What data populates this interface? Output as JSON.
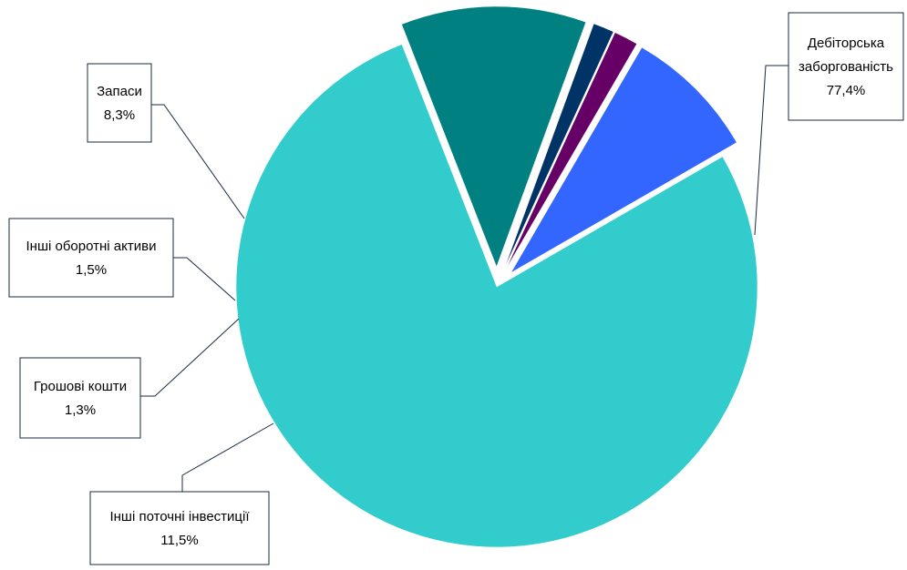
{
  "chart_data": {
    "type": "pie",
    "title": "",
    "slices": [
      {
        "name": "Дебіторська заборгованість",
        "label_lines": [
          "Дебіторська",
          "заборгованість"
        ],
        "value": 77.4,
        "value_label": "77,4%",
        "color": "#33CCCC",
        "exploded": false
      },
      {
        "name": "Інші поточні інвестиції",
        "label_lines": [
          "Інші поточні інвестиції"
        ],
        "value": 11.5,
        "value_label": "11,5%",
        "color": "#008080",
        "exploded": true
      },
      {
        "name": "Грошові кошти",
        "label_lines": [
          "Грошові кошти"
        ],
        "value": 1.3,
        "value_label": "1,3%",
        "color": "#003366",
        "exploded": true
      },
      {
        "name": "Інші оборотні активи",
        "label_lines": [
          "Інші оборотні активи"
        ],
        "value": 1.5,
        "value_label": "1,5%",
        "color": "#660066",
        "exploded": true
      },
      {
        "name": "Запаси",
        "label_lines": [
          "Запаси"
        ],
        "value": 8.3,
        "value_label": "8,3%",
        "color": "#3366FF",
        "exploded": true
      }
    ],
    "legend": "none",
    "data_labels": "callout-boxes"
  }
}
